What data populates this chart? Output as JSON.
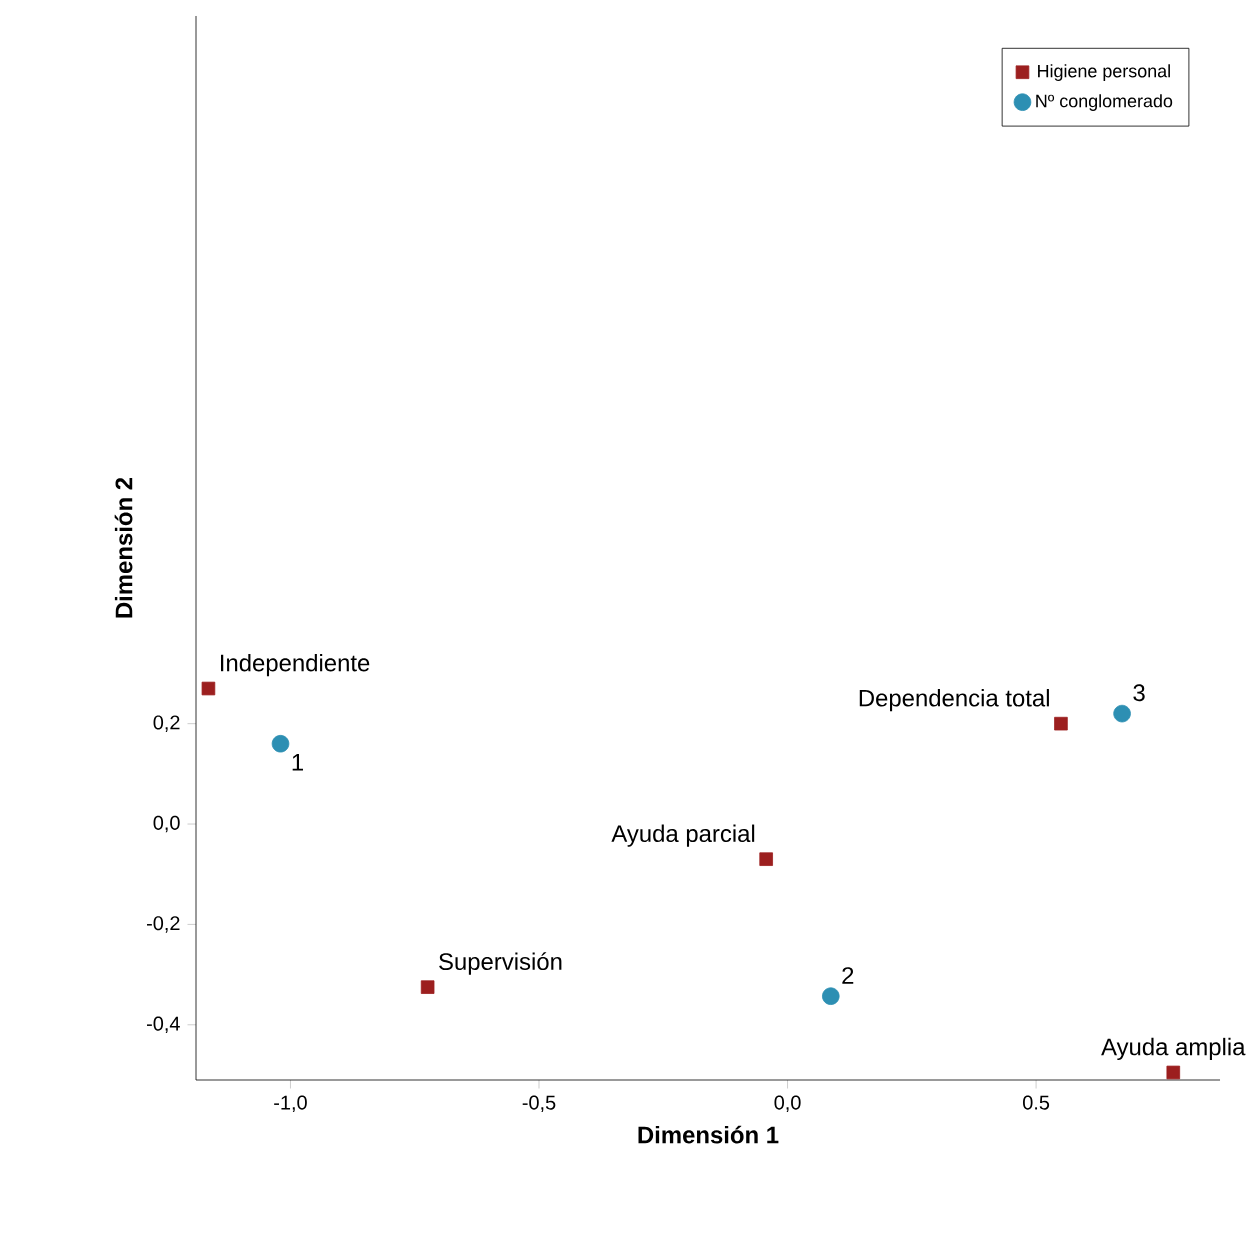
{
  "chart_data": {
    "type": "scatter",
    "xlabel": "Dimensión 1",
    "ylabel": "Dimensión 2",
    "xlim": [
      -1.19,
      0.87
    ],
    "ylim": [
      -0.51,
      1.61
    ],
    "xticks": [
      {
        "value": -1.0,
        "label": "-1,0"
      },
      {
        "value": -0.5,
        "label": "-0,5"
      },
      {
        "value": 0.0,
        "label": "0,0"
      },
      {
        "value": 0.5,
        "label": "0.5"
      }
    ],
    "yticks": [
      {
        "value": -0.4,
        "label": "-0,4"
      },
      {
        "value": -0.2,
        "label": "-0,2"
      },
      {
        "value": 0.0,
        "label": "0,0"
      },
      {
        "value": 0.2,
        "label": "0,2"
      }
    ],
    "legend": "top right",
    "grid": false,
    "series": [
      {
        "name": "Higiene personal",
        "color": "#9c1f1f",
        "marker": "square",
        "x": [
          -1.165,
          -0.724,
          -0.043,
          0.55,
          0.776
        ],
        "values": [
          0.27,
          -0.325,
          -0.07,
          0.2,
          -0.495
        ]
      },
      {
        "name": "Nº conglomerado",
        "color": "#2d8fb3",
        "marker": "circle",
        "x": [
          -1.02,
          0.087,
          0.673
        ],
        "values": [
          0.16,
          -0.343,
          0.22
        ]
      }
    ],
    "annotations": [
      {
        "text": "Independiente",
        "x": -1.165,
        "y": 0.27
      },
      {
        "text": "Supervisión",
        "x": -0.724,
        "y": -0.325
      },
      {
        "text": "Ayuda parcial",
        "x": -0.043,
        "y": -0.07
      },
      {
        "text": "Dependencia total",
        "x": 0.55,
        "y": 0.2
      },
      {
        "text": "Ayuda amplia",
        "x": 0.776,
        "y": -0.495
      },
      {
        "text": "1",
        "x": -1.02,
        "y": 0.16
      },
      {
        "text": "2",
        "x": 0.087,
        "y": -0.343
      },
      {
        "text": "3",
        "x": 0.673,
        "y": 0.22
      }
    ]
  }
}
